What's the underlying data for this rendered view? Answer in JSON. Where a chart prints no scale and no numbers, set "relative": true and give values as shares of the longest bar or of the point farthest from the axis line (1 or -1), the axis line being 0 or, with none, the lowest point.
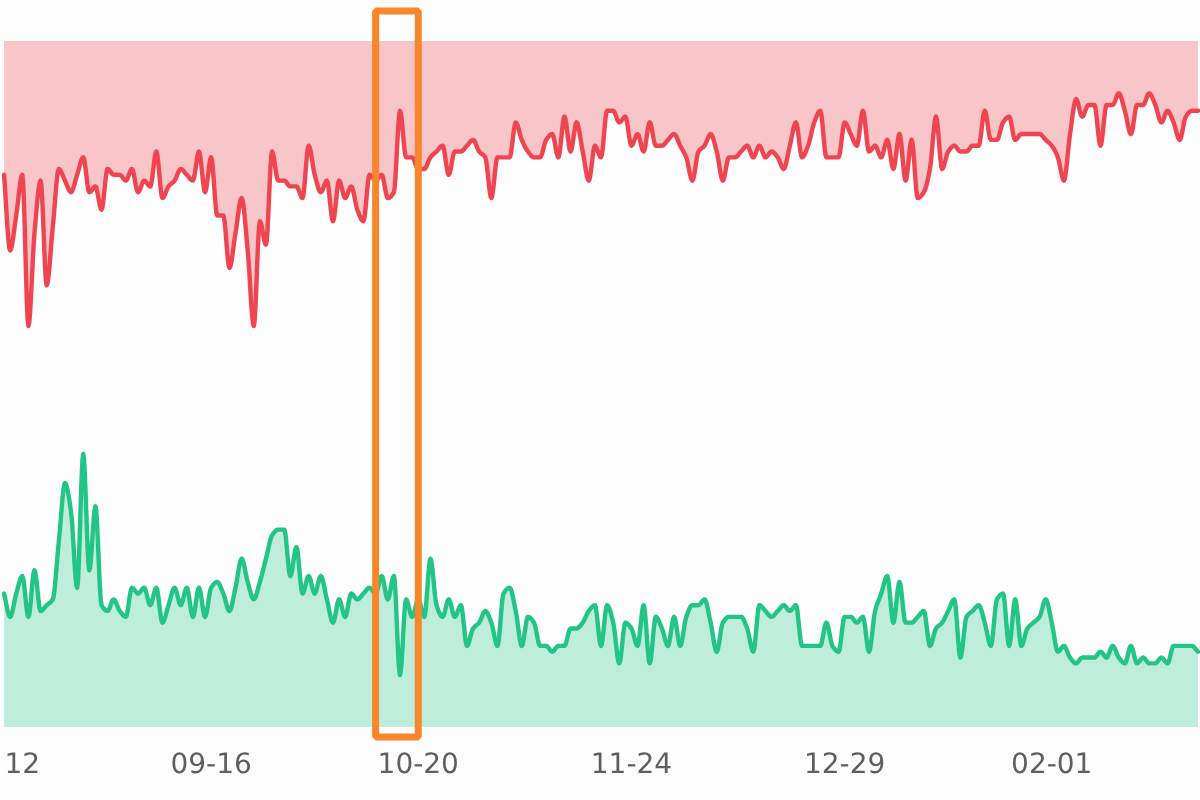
{
  "chart_data": {
    "type": "area",
    "relative": true,
    "categories": [
      null,
      null,
      null,
      "12",
      null,
      null,
      null,
      null,
      null,
      null,
      null,
      null,
      null,
      null,
      null,
      null,
      null,
      null,
      null,
      null,
      null,
      null,
      null,
      null,
      null,
      null,
      null,
      null,
      null,
      null,
      null,
      null,
      null,
      null,
      "09-16",
      null,
      null,
      null,
      null,
      null,
      null,
      null,
      null,
      null,
      null,
      null,
      null,
      null,
      null,
      null,
      null,
      null,
      null,
      null,
      null,
      null,
      null,
      null,
      null,
      null,
      null,
      null,
      null,
      null,
      null,
      null,
      null,
      null,
      "10-20",
      null,
      null,
      null,
      null,
      null,
      null,
      null,
      null,
      null,
      null,
      null,
      null,
      null,
      null,
      null,
      null,
      null,
      null,
      null,
      null,
      null,
      null,
      null,
      null,
      null,
      null,
      null,
      null,
      null,
      null,
      null,
      null,
      null,
      null,
      "11-24",
      null,
      null,
      null,
      null,
      null,
      null,
      null,
      null,
      null,
      null,
      null,
      null,
      null,
      null,
      null,
      null,
      null,
      null,
      null,
      null,
      null,
      null,
      null,
      null,
      null,
      null,
      null,
      null,
      null,
      null,
      null,
      null,
      null,
      null,
      "12-29",
      null,
      null,
      null,
      null,
      null,
      null,
      null,
      null,
      null,
      null,
      null,
      null,
      null,
      null,
      null,
      null,
      null,
      null,
      null,
      null,
      null,
      null,
      null,
      null,
      null,
      null,
      null,
      null,
      null,
      null,
      null,
      null,
      null,
      "02-01",
      null,
      null,
      null,
      null,
      null,
      null,
      null,
      null,
      null,
      null,
      null,
      null,
      null,
      null,
      null,
      null,
      null,
      null,
      null,
      null,
      null,
      null,
      null,
      null
    ],
    "series": [
      {
        "type": "line",
        "color": "#ef4550",
        "values": [
          0.86,
          0.73,
          0.79,
          0.86,
          0.6,
          0.76,
          0.85,
          0.67,
          0.77,
          0.87,
          0.85,
          0.83,
          0.86,
          0.89,
          0.83,
          0.84,
          0.8,
          0.87,
          0.86,
          0.86,
          0.85,
          0.87,
          0.83,
          0.85,
          0.84,
          0.9,
          0.82,
          0.84,
          0.85,
          0.87,
          0.86,
          0.85,
          0.9,
          0.83,
          0.89,
          0.79,
          0.79,
          0.7,
          0.76,
          0.82,
          0.73,
          0.6,
          0.78,
          0.74,
          0.9,
          0.85,
          0.85,
          0.84,
          0.84,
          0.82,
          0.91,
          0.86,
          0.83,
          0.85,
          0.78,
          0.85,
          0.82,
          0.84,
          0.8,
          0.78,
          0.86,
          0.85,
          0.86,
          0.82,
          0.83,
          0.97,
          0.89,
          0.89,
          0.87,
          0.87,
          0.89,
          0.9,
          0.91,
          0.86,
          0.9,
          0.9,
          0.91,
          0.92,
          0.9,
          0.89,
          0.82,
          0.89,
          0.89,
          0.89,
          0.95,
          0.92,
          0.9,
          0.89,
          0.89,
          0.92,
          0.93,
          0.89,
          0.96,
          0.9,
          0.95,
          0.9,
          0.85,
          0.91,
          0.89,
          0.97,
          0.97,
          0.95,
          0.96,
          0.91,
          0.93,
          0.9,
          0.95,
          0.91,
          0.91,
          0.92,
          0.93,
          0.91,
          0.89,
          0.85,
          0.9,
          0.91,
          0.93,
          0.9,
          0.85,
          0.89,
          0.89,
          0.9,
          0.91,
          0.89,
          0.91,
          0.89,
          0.9,
          0.89,
          0.87,
          0.91,
          0.95,
          0.89,
          0.91,
          0.95,
          0.97,
          0.89,
          0.89,
          0.89,
          0.95,
          0.93,
          0.91,
          0.97,
          0.9,
          0.91,
          0.89,
          0.92,
          0.87,
          0.93,
          0.85,
          0.92,
          0.82,
          0.83,
          0.87,
          0.96,
          0.87,
          0.9,
          0.91,
          0.9,
          0.9,
          0.91,
          0.91,
          0.97,
          0.92,
          0.92,
          0.95,
          0.96,
          0.92,
          0.93,
          0.93,
          0.93,
          0.93,
          0.92,
          0.91,
          0.89,
          0.85,
          0.93,
          0.99,
          0.96,
          0.98,
          0.98,
          0.91,
          0.98,
          0.98,
          1.0,
          0.97,
          0.93,
          0.98,
          0.98,
          1.0,
          0.98,
          0.95,
          0.97,
          0.95,
          0.92,
          0.96,
          0.97,
          0.97
        ],
        "lower": [
          0.86,
          0.73,
          0.79,
          0.86,
          0.6,
          0.76,
          0.85,
          0.67,
          0.77,
          0.87,
          0.85,
          0.83,
          0.86,
          0.89,
          0.83,
          0.84,
          0.8,
          0.87,
          0.86,
          0.86,
          0.85,
          0.87,
          0.83,
          0.85,
          0.84,
          0.9,
          0.82,
          0.84,
          0.85,
          0.87,
          0.86,
          0.85,
          0.9,
          0.83,
          0.89,
          0.79,
          0.79,
          0.7,
          0.76,
          0.82,
          0.73,
          0.6,
          0.78,
          0.74,
          0.9,
          0.85,
          0.85,
          0.84,
          0.84,
          0.82,
          0.91,
          0.86,
          0.83,
          0.85,
          0.78,
          0.85,
          0.82,
          0.84,
          0.8,
          0.78,
          0.86,
          0.85,
          0.86,
          0.82,
          0.83,
          0.97,
          0.89,
          0.89,
          0.87,
          0.87,
          0.89,
          0.9,
          0.91,
          0.86,
          0.9,
          0.9,
          0.91,
          0.92,
          0.9,
          0.89,
          0.82,
          0.89,
          0.89,
          0.89,
          0.95,
          0.92,
          0.9,
          0.89,
          0.89,
          0.92,
          0.93,
          0.89,
          0.96,
          0.9,
          0.95,
          0.9,
          0.85,
          0.91,
          0.89,
          0.97,
          0.97,
          0.95,
          0.96,
          0.91,
          0.93,
          0.9,
          0.95,
          0.91,
          0.91,
          0.92,
          0.93,
          0.91,
          0.89,
          0.85,
          0.9,
          0.91,
          0.93,
          0.9,
          0.85,
          0.89,
          0.89,
          0.9,
          0.91,
          0.89,
          0.91,
          0.89,
          0.9,
          0.89,
          0.87,
          0.91,
          0.95,
          0.89,
          0.91,
          0.95,
          0.97,
          0.89,
          0.89,
          0.89,
          0.95,
          0.93,
          0.91,
          0.97,
          0.9,
          0.91,
          0.89,
          0.92,
          0.87,
          0.93,
          0.85,
          0.92,
          0.82,
          0.83,
          0.87,
          0.96,
          0.87,
          0.9,
          0.91,
          0.9,
          0.9,
          0.91,
          0.91,
          0.97,
          0.92,
          0.92,
          0.95,
          0.96,
          0.92,
          0.93,
          0.93,
          0.93,
          0.93,
          0.92,
          0.91,
          0.89,
          0.85,
          0.93,
          0.99,
          0.96,
          0.98,
          0.98,
          0.91,
          0.98,
          0.98,
          1.0,
          0.97,
          0.93,
          0.98,
          0.98,
          1.0,
          0.98,
          0.95,
          0.97,
          0.95,
          0.92,
          0.96,
          0.97,
          0.97
        ],
        "upper": [
          1.09,
          1.09,
          1.09,
          1.09,
          1.09,
          1.09,
          1.09,
          1.09,
          1.09,
          1.09,
          1.09,
          1.09,
          1.09,
          1.09,
          1.09,
          1.09,
          1.09,
          1.09,
          1.09,
          1.09,
          1.09,
          1.09,
          1.09,
          1.09,
          1.09,
          1.09,
          1.09,
          1.09,
          1.09,
          1.09,
          1.09,
          1.09,
          1.09,
          1.09,
          1.09,
          1.09,
          1.09,
          1.09,
          1.09,
          1.09,
          1.09,
          1.09,
          1.09,
          1.09,
          1.09,
          1.09,
          1.09,
          1.09,
          1.09,
          1.09,
          1.09,
          1.09,
          1.09,
          1.09,
          1.09,
          1.09,
          1.09,
          1.09,
          1.09,
          1.09,
          1.09,
          1.09,
          1.09,
          1.09,
          1.09,
          1.09,
          1.09,
          1.09,
          1.09,
          1.09,
          1.09,
          1.09,
          1.09,
          1.09,
          1.09,
          1.09,
          1.09,
          1.09,
          1.09,
          1.09,
          1.09,
          1.09,
          1.09,
          1.09,
          1.09,
          1.09,
          1.09,
          1.09,
          1.09,
          1.09,
          1.09,
          1.09,
          1.09,
          1.09,
          1.09,
          1.09,
          1.09,
          1.09,
          1.09,
          1.09,
          1.09,
          1.09,
          1.09,
          1.09,
          1.09,
          1.09,
          1.09,
          1.09,
          1.09,
          1.09,
          1.09,
          1.09,
          1.09,
          1.09,
          1.09,
          1.09,
          1.09,
          1.09,
          1.09,
          1.09,
          1.09,
          1.09,
          1.09,
          1.09,
          1.09,
          1.09,
          1.09,
          1.09,
          1.09,
          1.09,
          1.09,
          1.09,
          1.09,
          1.09,
          1.09,
          1.09,
          1.09,
          1.09,
          1.09,
          1.09,
          1.09,
          1.09,
          1.09,
          1.09,
          1.09,
          1.09,
          1.09,
          1.09,
          1.09,
          1.09,
          1.09,
          1.09,
          1.09,
          1.09,
          1.09,
          1.09,
          1.09,
          1.09,
          1.09,
          1.09,
          1.09,
          1.09,
          1.09,
          1.09,
          1.09,
          1.09,
          1.09,
          1.09,
          1.09,
          1.09,
          1.09,
          1.09,
          1.09,
          1.09,
          1.09,
          1.09,
          1.09,
          1.09,
          1.09,
          1.09,
          1.09,
          1.09,
          1.09,
          1.09,
          1.09,
          1.09,
          1.09,
          1.09,
          1.09,
          1.09,
          1.09,
          1.09,
          1.09,
          1.09,
          1.09,
          1.09,
          1.09
        ]
      },
      {
        "color": "#22c584",
        "values": [
          0.14,
          0.1,
          0.14,
          0.17,
          0.1,
          0.18,
          0.11,
          0.12,
          0.13,
          0.23,
          0.33,
          0.28,
          0.15,
          0.38,
          0.18,
          0.29,
          0.12,
          0.11,
          0.13,
          0.11,
          0.1,
          0.15,
          0.14,
          0.15,
          0.12,
          0.15,
          0.09,
          0.12,
          0.15,
          0.12,
          0.15,
          0.1,
          0.15,
          0.1,
          0.15,
          0.16,
          0.14,
          0.11,
          0.15,
          0.2,
          0.16,
          0.13,
          0.16,
          0.2,
          0.24,
          0.25,
          0.25,
          0.17,
          0.22,
          0.14,
          0.17,
          0.14,
          0.17,
          0.13,
          0.09,
          0.13,
          0.1,
          0.14,
          0.13,
          0.14,
          0.15,
          0.14,
          0.17,
          0.13,
          0.17,
          0.0,
          0.13,
          0.1,
          0.13,
          0.1,
          0.2,
          0.12,
          0.1,
          0.13,
          0.1,
          0.12,
          0.05,
          0.08,
          0.09,
          0.11,
          0.09,
          0.05,
          0.14,
          0.15,
          0.11,
          0.05,
          0.1,
          0.09,
          0.05,
          0.05,
          0.04,
          0.05,
          0.05,
          0.08,
          0.08,
          0.09,
          0.11,
          0.12,
          0.05,
          0.12,
          0.09,
          0.02,
          0.09,
          0.08,
          0.05,
          0.12,
          0.02,
          0.1,
          0.08,
          0.05,
          0.1,
          0.05,
          0.1,
          0.12,
          0.12,
          0.13,
          0.09,
          0.04,
          0.09,
          0.1,
          0.1,
          0.1,
          0.08,
          0.04,
          0.12,
          0.11,
          0.1,
          0.11,
          0.12,
          0.11,
          0.12,
          0.05,
          0.05,
          0.05,
          0.05,
          0.09,
          0.05,
          0.04,
          0.1,
          0.1,
          0.09,
          0.1,
          0.04,
          0.11,
          0.14,
          0.17,
          0.09,
          0.16,
          0.09,
          0.09,
          0.1,
          0.11,
          0.05,
          0.08,
          0.09,
          0.11,
          0.13,
          0.03,
          0.1,
          0.11,
          0.12,
          0.09,
          0.05,
          0.13,
          0.14,
          0.05,
          0.13,
          0.05,
          0.08,
          0.09,
          0.1,
          0.13,
          0.09,
          0.04,
          0.05,
          0.03,
          0.02,
          0.03,
          0.03,
          0.03,
          0.04,
          0.03,
          0.05,
          0.03,
          0.02,
          0.05,
          0.02,
          0.03,
          0.02,
          0.02,
          0.03,
          0.02,
          0.05,
          0.05,
          0.05,
          0.05,
          0.04
        ]
      }
    ]
  }
}
